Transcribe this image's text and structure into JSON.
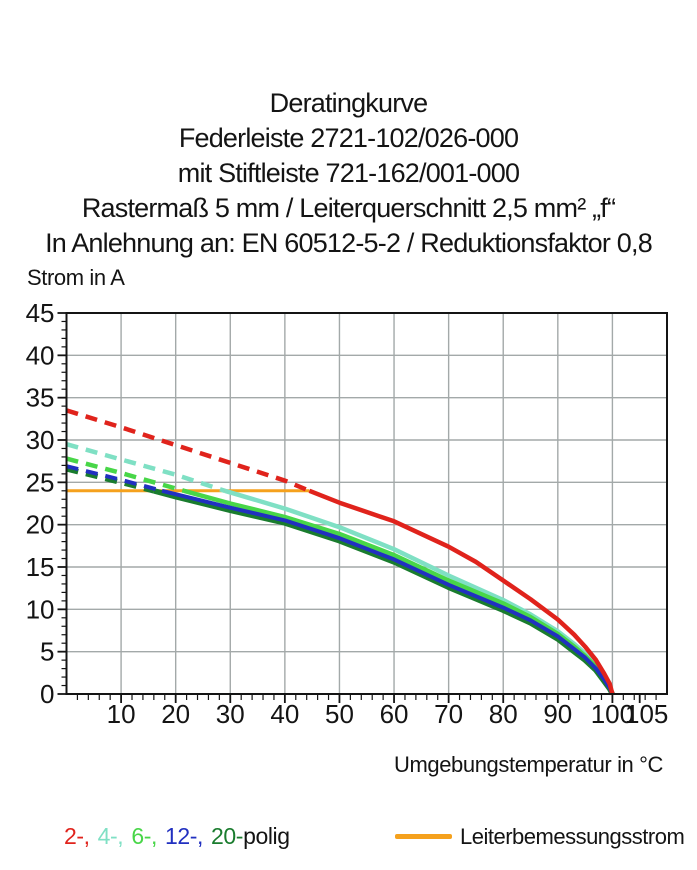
{
  "chart_data": {
    "type": "line",
    "title_lines": [
      "Deratingkurve",
      "Federleiste 2721-102/026-000",
      "mit Stiftleiste 721-162/001-000",
      "Rastermaß 5 mm / Leiterquerschnitt 2,5 mm² „f“",
      "In Anlehnung an: EN 60512-5-2 / Reduktionsfaktor 0,8"
    ],
    "ylabel": "Strom in A",
    "xlabel": "Umgebungstemperatur in °C",
    "xlim": [
      0,
      110
    ],
    "ylim": [
      0,
      45
    ],
    "x_tick_labels": [
      10,
      20,
      30,
      40,
      50,
      60,
      70,
      80,
      90,
      100,
      105
    ],
    "x_gridlines": [
      10,
      20,
      30,
      40,
      50,
      60,
      70,
      80,
      90,
      100
    ],
    "x_minor_step": 2,
    "y_tick_labels": [
      0,
      5,
      10,
      15,
      20,
      25,
      30,
      35,
      40,
      45
    ],
    "y_gridlines": [
      5,
      10,
      15,
      20,
      25,
      30,
      35,
      40
    ],
    "y_minor_step": 1,
    "grid_on": true,
    "grid_color": "#a3a9a9",
    "axis_color": "#141414",
    "series": [
      {
        "name": "4-polig",
        "color": "#7fe0c4",
        "style": "dashed-above-reference",
        "dash_until_x": 29,
        "points": [
          [
            0,
            29.5
          ],
          [
            10,
            27.7
          ],
          [
            20,
            25.9
          ],
          [
            29,
            24.0
          ],
          [
            40,
            21.9
          ],
          [
            50,
            19.7
          ],
          [
            60,
            17.1
          ],
          [
            70,
            14.0
          ],
          [
            80,
            11.1
          ],
          [
            85,
            9.4
          ],
          [
            90,
            7.4
          ],
          [
            93,
            5.9
          ],
          [
            95,
            4.8
          ],
          [
            97,
            3.4
          ],
          [
            98.5,
            2.0
          ],
          [
            99.5,
            0.9
          ],
          [
            100,
            0
          ]
        ]
      },
      {
        "name": "6-polig",
        "color": "#48d648",
        "style": "dashed-above-reference",
        "dash_until_x": 21.5,
        "points": [
          [
            0,
            27.8
          ],
          [
            10,
            26.1
          ],
          [
            21.5,
            24.0
          ],
          [
            30,
            22.5
          ],
          [
            40,
            20.9
          ],
          [
            50,
            18.9
          ],
          [
            60,
            16.4
          ],
          [
            70,
            13.4
          ],
          [
            80,
            10.7
          ],
          [
            85,
            9.1
          ],
          [
            90,
            7.1
          ],
          [
            93,
            5.6
          ],
          [
            95,
            4.5
          ],
          [
            97,
            3.2
          ],
          [
            98.5,
            1.8
          ],
          [
            99.5,
            0.8
          ],
          [
            100,
            0
          ]
        ]
      },
      {
        "name": "20-polig",
        "color": "#1a7c2e",
        "style": "dashed-above-reference",
        "dash_until_x": 16,
        "points": [
          [
            0,
            26.6
          ],
          [
            10,
            25.0
          ],
          [
            16,
            24.0
          ],
          [
            20,
            23.3
          ],
          [
            30,
            21.7
          ],
          [
            40,
            20.2
          ],
          [
            50,
            18.1
          ],
          [
            60,
            15.6
          ],
          [
            70,
            12.6
          ],
          [
            80,
            9.9
          ],
          [
            85,
            8.4
          ],
          [
            90,
            6.5
          ],
          [
            93,
            5.0
          ],
          [
            95,
            4.0
          ],
          [
            97,
            2.8
          ],
          [
            98.5,
            1.5
          ],
          [
            99.5,
            0.6
          ],
          [
            100,
            0
          ]
        ]
      },
      {
        "name": "12-polig",
        "color": "#2130c0",
        "style": "dashed-above-reference",
        "dash_until_x": 17.5,
        "points": [
          [
            0,
            26.9
          ],
          [
            10,
            25.3
          ],
          [
            17.5,
            24.0
          ],
          [
            20,
            23.6
          ],
          [
            30,
            22.0
          ],
          [
            40,
            20.5
          ],
          [
            50,
            18.4
          ],
          [
            60,
            15.9
          ],
          [
            70,
            12.9
          ],
          [
            80,
            10.2
          ],
          [
            85,
            8.7
          ],
          [
            90,
            6.8
          ],
          [
            93,
            5.3
          ],
          [
            95,
            4.3
          ],
          [
            97,
            3.0
          ],
          [
            98.5,
            1.7
          ],
          [
            99.5,
            0.7
          ],
          [
            100,
            0
          ]
        ]
      },
      {
        "name": "2-polig",
        "color": "#e0231c",
        "style": "dashed-above-reference",
        "dash_until_x": 44.5,
        "points": [
          [
            0,
            33.5
          ],
          [
            10,
            31.5
          ],
          [
            20,
            29.4
          ],
          [
            30,
            27.3
          ],
          [
            40,
            25.2
          ],
          [
            44.5,
            24.0
          ],
          [
            50,
            22.6
          ],
          [
            60,
            20.4
          ],
          [
            70,
            17.4
          ],
          [
            75,
            15.6
          ],
          [
            80,
            13.4
          ],
          [
            85,
            11.2
          ],
          [
            90,
            8.8
          ],
          [
            93,
            7.0
          ],
          [
            95,
            5.6
          ],
          [
            97,
            4.0
          ],
          [
            98.5,
            2.4
          ],
          [
            99.5,
            1.2
          ],
          [
            100,
            0
          ]
        ]
      }
    ],
    "reference_line": {
      "label": "Leiterbemessungsstrom",
      "color": "#f5a11d",
      "y": 24,
      "x_start": 0,
      "x_end": 44.5
    },
    "legend": {
      "poles": [
        {
          "text": "2-,",
          "color": "#e0231c"
        },
        {
          "text": "4-,",
          "color": "#7fe0c4"
        },
        {
          "text": "6-,",
          "color": "#48d648"
        },
        {
          "text": "12-,",
          "color": "#2130c0"
        },
        {
          "text": "20-",
          "color": "#1a7c2e"
        }
      ],
      "suffix": "polig",
      "suffix_color": "#141414"
    }
  }
}
